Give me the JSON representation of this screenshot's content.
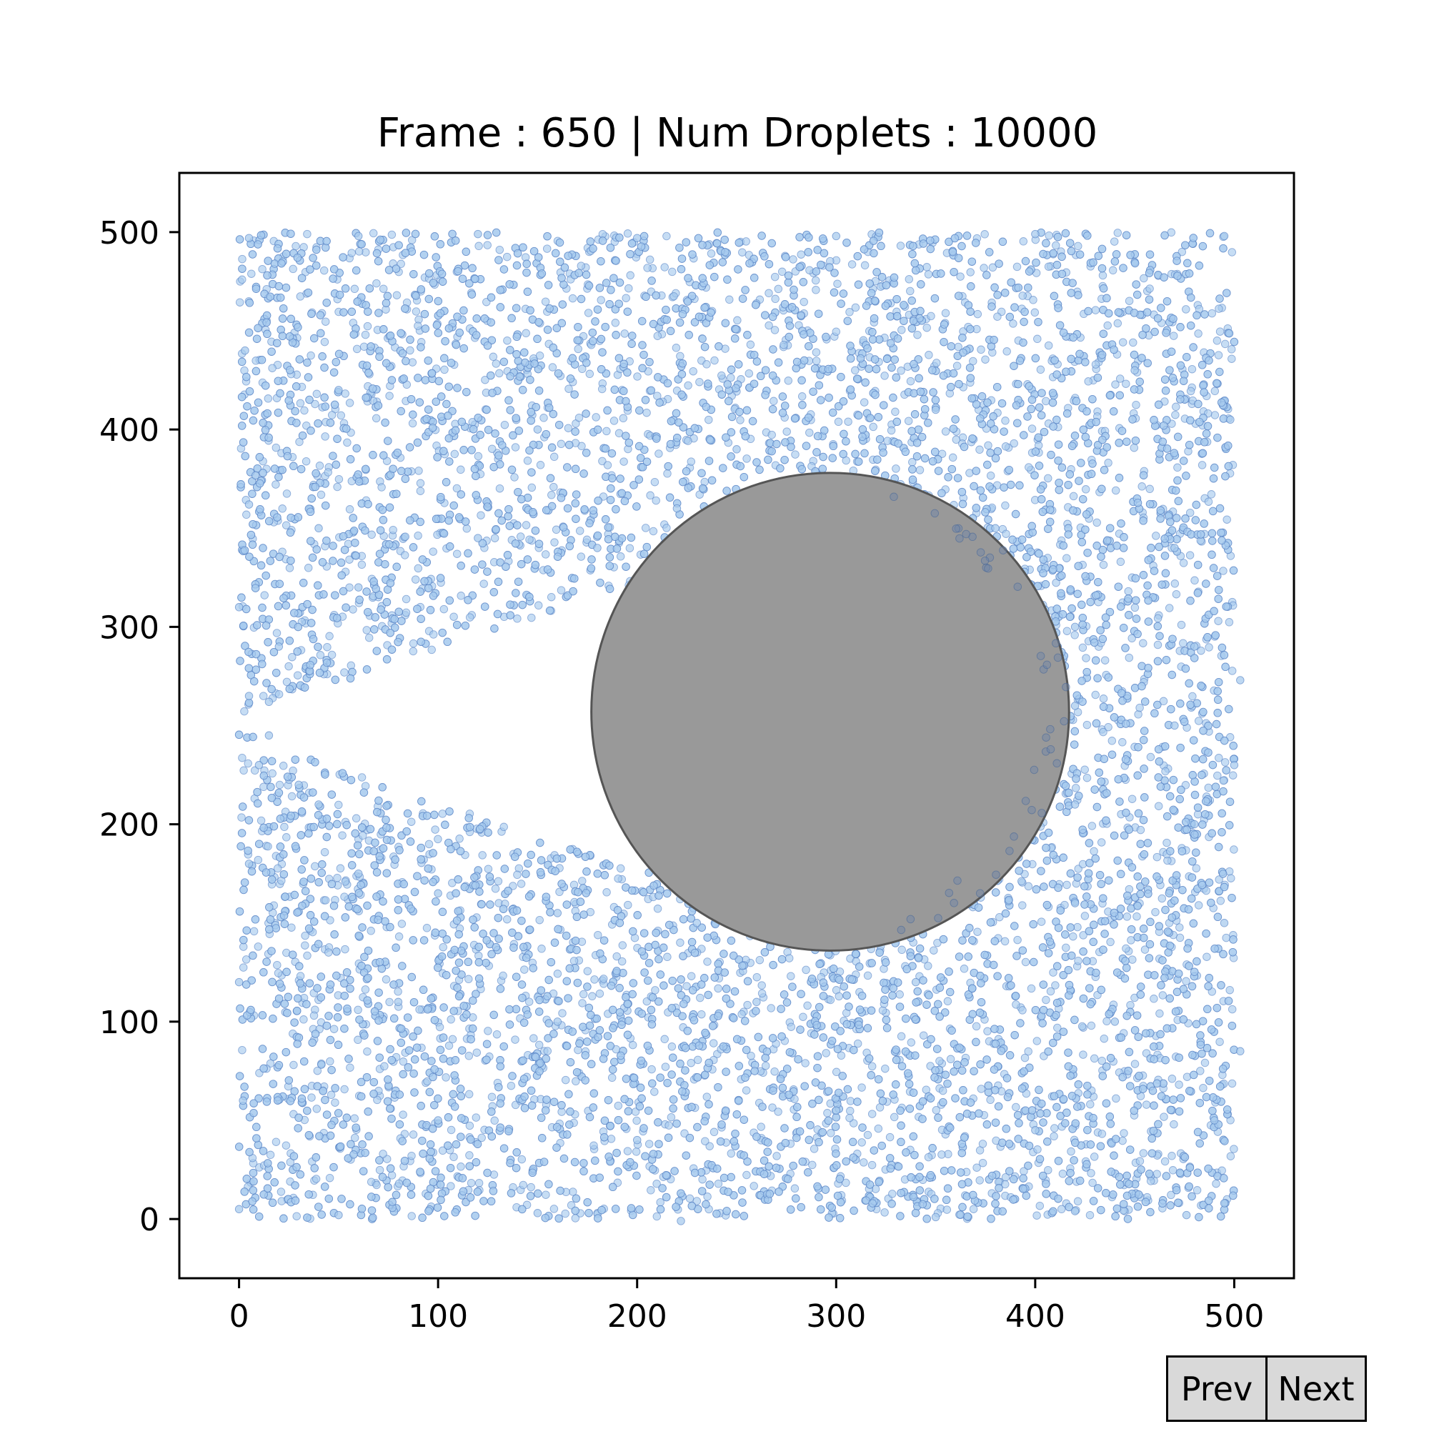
{
  "chart_data": {
    "type": "scatter",
    "title": "Frame : 650 | Num Droplets : 10000",
    "frame": 650,
    "num_droplets": 10000,
    "xlabel": "",
    "ylabel": "",
    "xlim": [
      -30,
      530
    ],
    "ylim": [
      -30,
      530
    ],
    "x_ticks": [
      0,
      100,
      200,
      300,
      400,
      500
    ],
    "y_ticks": [
      0,
      100,
      200,
      300,
      400,
      500
    ],
    "x_tick_labels": [
      "0",
      "100",
      "200",
      "300",
      "400",
      "500"
    ],
    "y_tick_labels": [
      "0",
      "100",
      "200",
      "300",
      "400",
      "500"
    ],
    "grid": false,
    "legend": "none",
    "droplet_color": "#a8cbee",
    "droplet_edge_color": "#4a78c0",
    "obstacle": {
      "shape": "circle",
      "center": [
        297,
        257
      ],
      "radius": 120,
      "color": "#999999",
      "edge_color": "#555555"
    },
    "droplet_region": {
      "x_range": [
        0,
        500
      ],
      "y_range": [
        0,
        500
      ],
      "empty_wake": "parabolic gap trailing left of obstacle, open toward x=0, y≈240–260"
    },
    "sample_points": [
      [
        5,
        497
      ],
      [
        60,
        498
      ],
      [
        120,
        499
      ],
      [
        200,
        497
      ],
      [
        300,
        498
      ],
      [
        400,
        499
      ],
      [
        495,
        498
      ],
      [
        3,
        440
      ],
      [
        50,
        420
      ],
      [
        150,
        400
      ],
      [
        250,
        390
      ],
      [
        350,
        410
      ],
      [
        450,
        430
      ],
      [
        498,
        405
      ],
      [
        5,
        362
      ],
      [
        40,
        350
      ],
      [
        120,
        345
      ],
      [
        180,
        340
      ],
      [
        220,
        360
      ],
      [
        380,
        350
      ],
      [
        470,
        340
      ],
      [
        0,
        310
      ],
      [
        20,
        290
      ],
      [
        60,
        320
      ],
      [
        420,
        300
      ],
      [
        480,
        290
      ],
      [
        503,
        273
      ],
      [
        5,
        265
      ],
      [
        15,
        262
      ],
      [
        420,
        260
      ],
      [
        470,
        250
      ],
      [
        500,
        230
      ],
      [
        15,
        245
      ],
      [
        10,
        230
      ],
      [
        30,
        220
      ],
      [
        40,
        210
      ],
      [
        420,
        210
      ],
      [
        480,
        200
      ],
      [
        5,
        180
      ],
      [
        60,
        175
      ],
      [
        100,
        165
      ],
      [
        160,
        155
      ],
      [
        230,
        150
      ],
      [
        420,
        160
      ],
      [
        495,
        150
      ],
      [
        0,
        120
      ],
      [
        80,
        110
      ],
      [
        160,
        100
      ],
      [
        260,
        110
      ],
      [
        340,
        120
      ],
      [
        440,
        100
      ],
      [
        503,
        85
      ],
      [
        2,
        60
      ],
      [
        100,
        50
      ],
      [
        200,
        40
      ],
      [
        300,
        55
      ],
      [
        400,
        45
      ],
      [
        490,
        50
      ],
      [
        0,
        5
      ],
      [
        50,
        2
      ],
      [
        150,
        3
      ],
      [
        222,
        -1
      ],
      [
        350,
        1
      ],
      [
        420,
        4
      ],
      [
        476,
        2
      ],
      [
        495,
        8
      ]
    ]
  },
  "controls": {
    "prev_label": "Prev",
    "next_label": "Next"
  }
}
